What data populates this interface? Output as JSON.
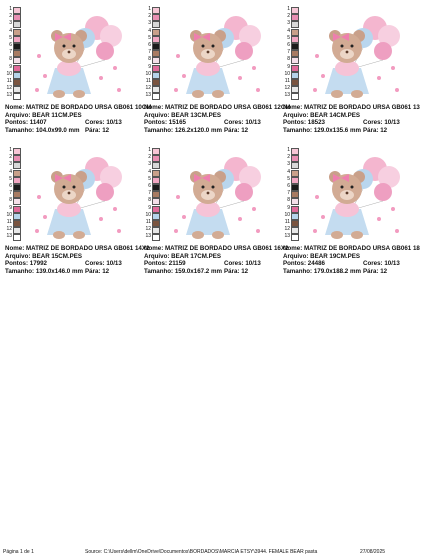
{
  "swatch_labels": [
    "1",
    "2",
    "3",
    "4",
    "5",
    "6",
    "7",
    "8",
    "9",
    "10",
    "11",
    "12",
    "13"
  ],
  "cells": [
    {
      "nome": "Nome: MATRIZ DE BORDADO URSA GB061 10CM",
      "arquivo": "Arquivo: BEAR 11CM.PES",
      "pontos": "Pontos: 11407",
      "cores": "Cores: 10/13",
      "tamanho": "Tamanho: 104.0x99.0 mm",
      "para": "Pára: 12"
    },
    {
      "nome": "Nome: MATRIZ DE BORDADO URSA GB061 12CM",
      "arquivo": "Arquivo: BEAR 13CM.PES",
      "pontos": "Pontos: 15165",
      "cores": "Cores: 10/13",
      "tamanho": "Tamanho: 126.2x120.0 mm",
      "para": "Pára: 12"
    },
    {
      "nome": "Nome: MATRIZ DE BORDADO URSA GB061 13",
      "arquivo": "Arquivo: BEAR 14CM.PES",
      "pontos": "Pontos: 18523",
      "cores": "Cores: 10/13",
      "tamanho": "Tamanho: 129.0x135.6 mm",
      "para": "Pára: 12"
    },
    {
      "nome": "Nome: MATRIZ DE BORDADO URSA GB061 14X2",
      "arquivo": "Arquivo: BEAR 15CM.PES",
      "pontos": "Pontos: 17992",
      "cores": "Cores: 10/13",
      "tamanho": "Tamanho: 139.0x146.0 mm",
      "para": "Pára: 12"
    },
    {
      "nome": "Nome: MATRIZ DE BORDADO URSA GB061 16X2",
      "arquivo": "Arquivo: BEAR 17CM.PES",
      "pontos": "Pontos: 21159",
      "cores": "Cores: 10/13",
      "tamanho": "Tamanho: 159.0x167.2 mm",
      "para": "Pára: 12"
    },
    {
      "nome": "Nome: MATRIZ DE BORDADO URSA GB061 18",
      "arquivo": "Arquivo: BEAR 19CM.PES",
      "pontos": "Pontos: 24486",
      "cores": "Cores: 10/13",
      "tamanho": "Tamanho: 179.0x188.2 mm",
      "para": "Pára: 12"
    }
  ],
  "footer": {
    "page": "Página 1 de 1",
    "source": "Source: C:\\Users\\dellm\\OneDrive\\Documentos\\BORDADOS\\MARCIA ETSY\\3944. FEMALE BEAR pasta",
    "date": "27/08/2025"
  }
}
